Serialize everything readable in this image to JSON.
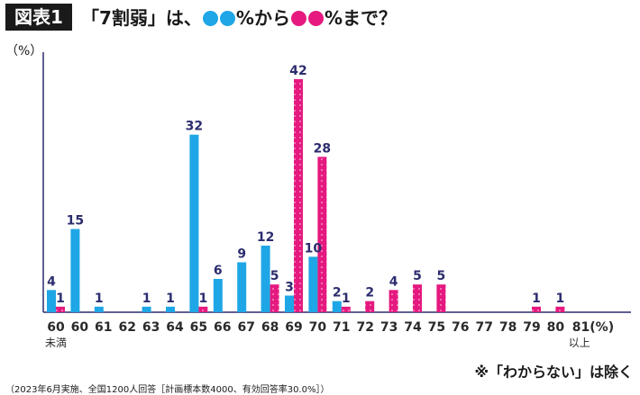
{
  "header": {
    "figure_label": "図表1",
    "title_part1": "「7割弱」は、",
    "title_part2": "%から",
    "title_part3": "%まで？"
  },
  "unit_label": "（%）",
  "note": "※「わからない」は除く",
  "source": "（2023年6月実施、全国1200人回答［計画標本数4000、有効回答率30.0%］）",
  "colors": {
    "from": "#1ea6e6",
    "to": "#e5197f",
    "axis": "#2c2c6e"
  },
  "chart_data": {
    "type": "bar",
    "categories": [
      "60",
      "60",
      "61",
      "62",
      "63",
      "64",
      "65",
      "66",
      "67",
      "68",
      "69",
      "70",
      "71",
      "72",
      "73",
      "74",
      "75",
      "76",
      "77",
      "78",
      "79",
      "80",
      "81(%)"
    ],
    "sublabels": [
      "未満",
      "",
      "",
      "",
      "",
      "",
      "",
      "",
      "",
      "",
      "",
      "",
      "",
      "",
      "",
      "",
      "",
      "",
      "",
      "",
      "",
      "",
      "以上"
    ],
    "series": [
      {
        "values": [
          4,
          15,
          1,
          0,
          1,
          1,
          32,
          6,
          9,
          12,
          3,
          10,
          2,
          0,
          0,
          0,
          0,
          0,
          0,
          0,
          0,
          0,
          0
        ]
      },
      {
        "values": [
          1,
          0,
          0,
          0,
          0,
          0,
          1,
          0,
          0,
          5,
          42,
          28,
          1,
          2,
          4,
          5,
          5,
          0,
          0,
          0,
          1,
          1,
          0
        ]
      }
    ],
    "labels": [
      [
        "4",
        "15",
        "1",
        "",
        "1",
        "1",
        "32",
        "6",
        "9",
        "12",
        "3",
        "10",
        "2",
        "",
        "",
        "",
        "",
        "",
        "",
        "",
        "",
        "",
        ""
      ],
      [
        "1",
        "",
        "",
        "",
        "",
        "",
        "1",
        "",
        "",
        "5",
        "42",
        "28",
        "1",
        "2",
        "4",
        "5",
        "5",
        "",
        "",
        "",
        "1",
        "1",
        ""
      ]
    ],
    "ylim": [
      0,
      45
    ]
  }
}
